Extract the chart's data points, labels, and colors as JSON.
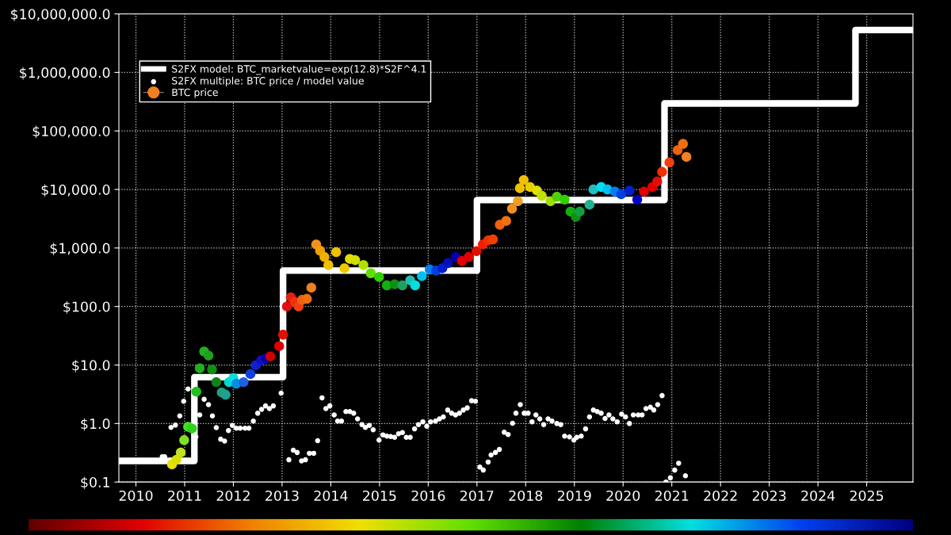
{
  "chart_data": {
    "type": "scatter",
    "log": "y",
    "grid": true,
    "legend": "top left",
    "xlim": [
      2009.65,
      2025.95
    ],
    "ylim": [
      0.1,
      10000000
    ],
    "xticks": [
      2010,
      2011,
      2012,
      2013,
      2014,
      2015,
      2016,
      2017,
      2018,
      2019,
      2020,
      2021,
      2022,
      2023,
      2024,
      2025
    ],
    "yticks": [
      {
        "value": 0.1,
        "label": "$0.1"
      },
      {
        "value": 1,
        "label": "$1.0"
      },
      {
        "value": 10,
        "label": "$10.0"
      },
      {
        "value": 100,
        "label": "$100.0"
      },
      {
        "value": 1000,
        "label": "$1,000.0"
      },
      {
        "value": 10000,
        "label": "$10,000.0"
      },
      {
        "value": 100000,
        "label": "$100,000.0"
      },
      {
        "value": 1000000,
        "label": "$1,000,000.0"
      },
      {
        "value": 10000000,
        "label": "$10,000,000.0"
      }
    ],
    "series": [
      {
        "name": "S2FX model: BTC_marketvalue=exp(12.8)*S2F^4.1",
        "type": "step",
        "color": "#ffffff",
        "x": [
          2009.7,
          2011.2,
          2013.02,
          2017.0,
          2020.85,
          2024.77,
          2025.92
        ],
        "values": [
          0.23,
          6.2,
          410,
          6600,
          295000,
          5300000,
          5300000
        ]
      },
      {
        "name": "S2FX multiple: BTC price / model value",
        "color": "#ffffff",
        "x": [
          2010.54,
          2010.59,
          2010.72,
          2010.81,
          2010.9,
          2010.98,
          2011.07,
          2011.23,
          2011.31,
          2011.4,
          2011.49,
          2011.57,
          2011.65,
          2011.74,
          2011.82,
          2011.9,
          2011.98,
          2012.06,
          2012.14,
          2012.24,
          2012.32,
          2012.41,
          2012.5,
          2012.58,
          2012.66,
          2012.74,
          2012.82,
          2012.98,
          2013.14,
          2013.23,
          2013.31,
          2013.4,
          2013.48,
          2013.56,
          2013.65,
          2013.73,
          2013.82,
          2013.9,
          2013.98,
          2014.07,
          2014.14,
          2014.22,
          2014.31,
          2014.39,
          2014.47,
          2014.55,
          2014.64,
          2014.71,
          2014.79,
          2014.87,
          2014.99,
          2015.07,
          2015.15,
          2015.23,
          2015.31,
          2015.39,
          2015.47,
          2015.55,
          2015.63,
          2015.72,
          2015.8,
          2015.89,
          2015.97,
          2016.05,
          2016.15,
          2016.23,
          2016.31,
          2016.4,
          2016.48,
          2016.56,
          2016.64,
          2016.72,
          2016.8,
          2016.89,
          2016.97,
          2017.06,
          2017.13,
          2017.23,
          2017.29,
          2017.38,
          2017.46,
          2017.56,
          2017.64,
          2017.73,
          2017.8,
          2017.89,
          2017.97,
          2018.05,
          2018.13,
          2018.21,
          2018.29,
          2018.37,
          2018.46,
          2018.54,
          2018.64,
          2018.72,
          2018.8,
          2018.9,
          2018.99,
          2019.05,
          2019.14,
          2019.23,
          2019.31,
          2019.39,
          2019.47,
          2019.55,
          2019.63,
          2019.71,
          2019.79,
          2019.88,
          2019.97,
          2020.05,
          2020.13,
          2020.21,
          2020.31,
          2020.39,
          2020.47,
          2020.56,
          2020.63,
          2020.71,
          2020.8,
          2020.88,
          2020.97,
          2021.06,
          2021.14,
          2021.28
        ],
        "values": [
          0.27,
          0.27,
          0.86,
          0.94,
          1.35,
          2.4,
          3.9,
          0.59,
          1.4,
          2.6,
          2.1,
          1.35,
          0.85,
          0.54,
          0.5,
          0.76,
          0.93,
          0.83,
          0.83,
          0.83,
          0.83,
          1.1,
          1.5,
          1.75,
          2.0,
          1.8,
          2.0,
          3.3,
          0.24,
          0.35,
          0.32,
          0.23,
          0.24,
          0.31,
          0.31,
          0.51,
          2.75,
          1.8,
          2.0,
          1.4,
          1.1,
          1.1,
          1.6,
          1.6,
          1.5,
          1.2,
          0.96,
          0.86,
          0.93,
          0.78,
          0.52,
          0.64,
          0.61,
          0.6,
          0.58,
          0.67,
          0.7,
          0.58,
          0.58,
          0.81,
          0.96,
          1.07,
          0.9,
          1.07,
          1.1,
          1.2,
          1.3,
          1.7,
          1.5,
          1.4,
          1.5,
          1.7,
          1.85,
          2.45,
          2.4,
          0.18,
          0.16,
          0.22,
          0.29,
          0.32,
          0.36,
          0.71,
          0.65,
          1.01,
          1.5,
          2.1,
          1.5,
          1.5,
          1.07,
          1.4,
          1.2,
          0.96,
          1.2,
          1.1,
          1.0,
          0.96,
          0.61,
          0.59,
          0.52,
          0.58,
          0.61,
          0.81,
          1.3,
          1.7,
          1.6,
          1.5,
          1.22,
          1.4,
          1.2,
          1.07,
          1.45,
          1.3,
          1.0,
          1.4,
          1.4,
          1.4,
          1.8,
          1.9,
          1.7,
          2.1,
          3.0,
          0.1,
          0.118,
          0.16,
          0.21,
          0.128
        ]
      },
      {
        "name": "BTC price",
        "color": "#f08020",
        "x": [
          2010.74,
          2010.83,
          2010.92,
          2010.99,
          2011.07,
          2011.15,
          2011.24,
          2011.31,
          2011.4,
          2011.49,
          2011.56,
          2011.65,
          2011.76,
          2011.84,
          2011.91,
          2012.0,
          2012.06,
          2012.21,
          2012.35,
          2012.46,
          2012.57,
          2012.67,
          2012.76,
          2012.94,
          2013.02,
          2013.1,
          2013.18,
          2013.26,
          2013.34,
          2013.41,
          2013.51,
          2013.6,
          2013.7,
          2013.78,
          2013.87,
          2013.95,
          2014.11,
          2014.28,
          2014.39,
          2014.5,
          2014.67,
          2014.82,
          2014.99,
          2015.15,
          2015.31,
          2015.47,
          2015.63,
          2015.73,
          2015.87,
          2016.03,
          2016.16,
          2016.29,
          2016.4,
          2016.56,
          2016.69,
          2016.83,
          2016.99,
          2017.12,
          2017.23,
          2017.33,
          2017.47,
          2017.6,
          2017.72,
          2017.84,
          2017.88,
          2017.96,
          2018.09,
          2018.23,
          2018.33,
          2018.51,
          2018.64,
          2018.8,
          2018.92,
          2019.03,
          2019.11,
          2019.31,
          2019.39,
          2019.55,
          2019.68,
          2019.83,
          2019.96,
          2020.13,
          2020.29,
          2020.43,
          2020.6,
          2020.7,
          2020.8,
          2020.95,
          2021.12,
          2021.23,
          2021.3
        ],
        "values": [
          0.2,
          0.24,
          0.32,
          0.52,
          0.88,
          0.82,
          3.5,
          8.8,
          17,
          14.5,
          8.4,
          5.1,
          3.4,
          3.1,
          5.1,
          6.0,
          4.8,
          5.1,
          7.0,
          9.9,
          12,
          13,
          14,
          21,
          33,
          100,
          143,
          120,
          100,
          130,
          135,
          210,
          1150,
          900,
          700,
          510,
          850,
          450,
          650,
          620,
          510,
          370,
          320,
          230,
          240,
          230,
          280,
          230,
          330,
          430,
          410,
          450,
          550,
          700,
          600,
          700,
          880,
          1150,
          1350,
          1400,
          2500,
          2900,
          4700,
          6300,
          10500,
          14500,
          11000,
          9600,
          7800,
          6300,
          7500,
          6700,
          4200,
          3400,
          4200,
          5500,
          10000,
          11000,
          10000,
          9200,
          8300,
          9600,
          6700,
          9200,
          11000,
          13700,
          20000,
          29000,
          47000,
          60000,
          36000
        ],
        "colors": [
          "#e8e000",
          "#d8e000",
          "#c0e020",
          "#80e020",
          "#40e020",
          "#30d020",
          "#20c020",
          "#20b020",
          "#20b020",
          "#20a020",
          "#109010",
          "#108020",
          "#20a080",
          "#20a090",
          "#00d8d0",
          "#00e0e0",
          "#0090e0",
          "#2060e0",
          "#1040e0",
          "#1020d0",
          "#1010c0",
          "#0000b0",
          "#d00000",
          "#e00000",
          "#e01000",
          "#e01010",
          "#e02010",
          "#f03010",
          "#f04010",
          "#f06010",
          "#f07010",
          "#f08020",
          "#f09020",
          "#f0a000",
          "#f0b000",
          "#f0c000",
          "#f0c000",
          "#f0c800",
          "#e0e000",
          "#d0e000",
          "#b0e000",
          "#60e000",
          "#30d000",
          "#10b010",
          "#109010",
          "#20a060",
          "#20c0b0",
          "#00e0e0",
          "#00c0f0",
          "#0080f0",
          "#0040e0",
          "#0020d0",
          "#0010c0",
          "#0000b0",
          "#e00000",
          "#e00000",
          "#e01000",
          "#f02000",
          "#f03000",
          "#f04000",
          "#f06010",
          "#f07010",
          "#f09020",
          "#f0a020",
          "#f0c000",
          "#f0c000",
          "#e8d000",
          "#e0e000",
          "#c0e000",
          "#a0e000",
          "#50d000",
          "#30d000",
          "#10b010",
          "#109010",
          "#10a040",
          "#20b090",
          "#20c0c0",
          "#00e0f0",
          "#00c0f0",
          "#0080f0",
          "#0040e0",
          "#0020d0",
          "#0000c0",
          "#e00000",
          "#e00000",
          "#e01000",
          "#f03000",
          "#f04010",
          "#f06010",
          "#f07010",
          "#f08020"
        ]
      }
    ]
  }
}
